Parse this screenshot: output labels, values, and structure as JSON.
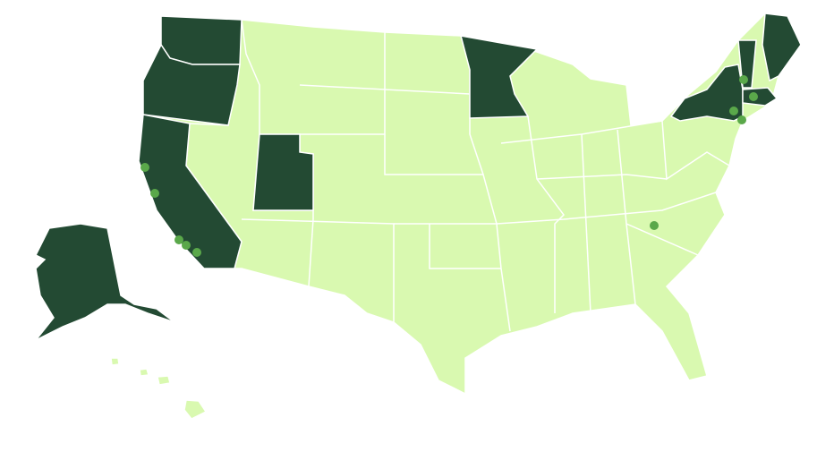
{
  "map": {
    "base_color": "#d9f9b0",
    "highlight_color": "#234a33",
    "dot_color": "#5aa84a",
    "border_color": "#ffffff"
  }
}
